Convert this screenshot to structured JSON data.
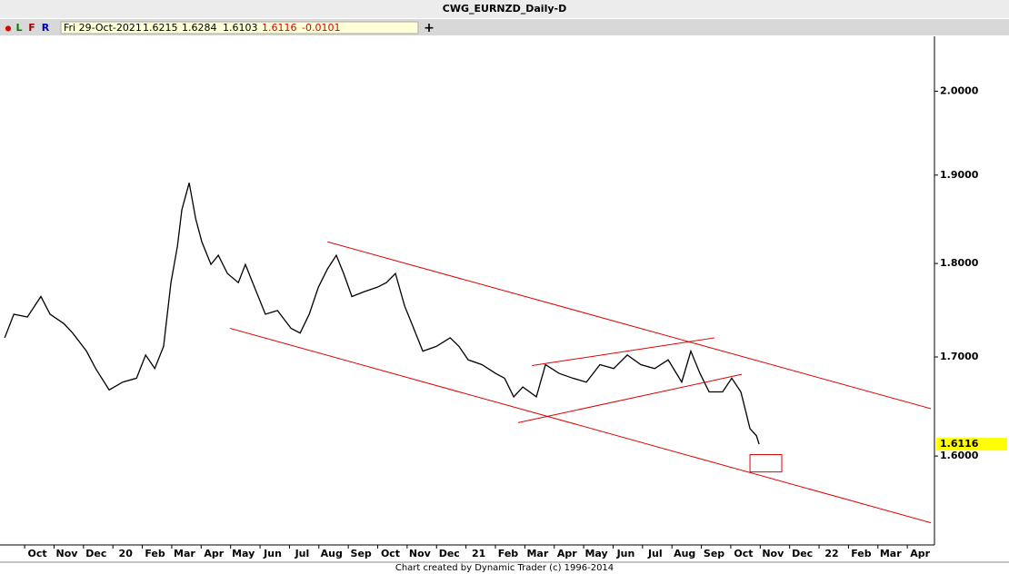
{
  "header": {
    "title": "CWG_EURNZD_Daily-D",
    "buttons": [
      "●",
      "L",
      "F",
      "R"
    ],
    "quote": {
      "date": "Fri 29-Oct-2021",
      "open": "1.6215",
      "high": "1.6284",
      "low": "1.6103",
      "close": "1.6116",
      "change": "-0.0101"
    },
    "add": "+"
  },
  "footer": "Chart created by Dynamic Trader  (c) 1996-2014",
  "chart_data": {
    "type": "line",
    "log_scale": true,
    "color": "#000000",
    "annotation_color": "#e00000",
    "x": [
      -1.11,
      -0.8,
      -0.34,
      0.12,
      0.43,
      0.9,
      1.2,
      1.67,
      1.98,
      2.44,
      2.9,
      3.37,
      3.68,
      3.99,
      4.29,
      4.54,
      4.76,
      4.91,
      5.16,
      5.38,
      5.59,
      5.9,
      6.15,
      6.46,
      6.83,
      7.07,
      7.38,
      7.75,
      8.16,
      8.62,
      8.93,
      9.24,
      9.55,
      9.86,
      10.16,
      10.41,
      10.69,
      11.09,
      11.55,
      11.86,
      12.17,
      12.48,
      12.79,
      13.1,
      13.56,
      14.03,
      14.33,
      14.64,
      15.11,
      15.57,
      15.88,
      16.19,
      16.5,
      16.96,
      17.27,
      17.73,
      18.2,
      18.66,
      19.12,
      19.59,
      20.05,
      20.51,
      20.98,
      21.44,
      21.9,
      22.21,
      22.52,
      22.83,
      23.29,
      23.6,
      23.91,
      24.07,
      24.22,
      24.44,
      24.53
    ],
    "values": [
      1.72,
      1.745,
      1.742,
      1.764,
      1.745,
      1.735,
      1.725,
      1.706,
      1.688,
      1.666,
      1.674,
      1.678,
      1.702,
      1.688,
      1.711,
      1.779,
      1.819,
      1.86,
      1.891,
      1.85,
      1.824,
      1.799,
      1.809,
      1.789,
      1.779,
      1.799,
      1.774,
      1.745,
      1.749,
      1.73,
      1.725,
      1.745,
      1.774,
      1.794,
      1.809,
      1.789,
      1.764,
      1.769,
      1.774,
      1.779,
      1.789,
      1.754,
      1.73,
      1.706,
      1.711,
      1.72,
      1.711,
      1.697,
      1.692,
      1.683,
      1.678,
      1.659,
      1.669,
      1.659,
      1.692,
      1.683,
      1.678,
      1.674,
      1.692,
      1.688,
      1.702,
      1.692,
      1.688,
      1.697,
      1.674,
      1.706,
      1.683,
      1.664,
      1.664,
      1.678,
      1.664,
      1.645,
      1.627,
      1.62,
      1.6116
    ],
    "xlim": [
      -1.27,
      30.49
    ],
    "ylim": [
      1.517,
      2.066
    ],
    "xticks": [
      {
        "value": 0,
        "label": "Oct"
      },
      {
        "value": 1,
        "label": "Nov"
      },
      {
        "value": 2,
        "label": "Dec"
      },
      {
        "value": 3,
        "label": "20"
      },
      {
        "value": 4,
        "label": "Feb"
      },
      {
        "value": 5,
        "label": "Mar"
      },
      {
        "value": 6,
        "label": "Apr"
      },
      {
        "value": 7,
        "label": "May"
      },
      {
        "value": 8,
        "label": "Jun"
      },
      {
        "value": 9,
        "label": "Jul"
      },
      {
        "value": 10,
        "label": "Aug"
      },
      {
        "value": 11,
        "label": "Sep"
      },
      {
        "value": 12,
        "label": "Oct"
      },
      {
        "value": 13,
        "label": "Nov"
      },
      {
        "value": 14,
        "label": "Dec"
      },
      {
        "value": 15,
        "label": "21"
      },
      {
        "value": 16,
        "label": "Feb"
      },
      {
        "value": 17,
        "label": "Mar"
      },
      {
        "value": 18,
        "label": "Apr"
      },
      {
        "value": 19,
        "label": "May"
      },
      {
        "value": 20,
        "label": "Jun"
      },
      {
        "value": 21,
        "label": "Jul"
      },
      {
        "value": 22,
        "label": "Aug"
      },
      {
        "value": 23,
        "label": "Sep"
      },
      {
        "value": 24,
        "label": "Oct"
      },
      {
        "value": 25,
        "label": "Nov"
      },
      {
        "value": 26,
        "label": "Dec"
      },
      {
        "value": 27,
        "label": "22"
      },
      {
        "value": 28,
        "label": "Feb"
      },
      {
        "value": 29,
        "label": "Mar"
      },
      {
        "value": 30,
        "label": "Apr"
      }
    ],
    "yticks": [
      {
        "value": 1.6,
        "label": "1.6000"
      },
      {
        "value": 1.7,
        "label": "1.7000"
      },
      {
        "value": 1.8,
        "label": "1.8000"
      },
      {
        "value": 1.9,
        "label": "1.9000"
      },
      {
        "value": 2.0,
        "label": "2.0000"
      }
    ],
    "last_price": {
      "value": 1.6116,
      "label": "1.6116",
      "color": "#ffff00"
    },
    "trend_lines": [
      {
        "x": [
          9.86,
          30.37
        ],
        "y": [
          1.824,
          1.647
        ]
      },
      {
        "x": [
          6.55,
          30.37
        ],
        "y": [
          1.73,
          1.536
        ]
      },
      {
        "x": [
          16.81,
          23.02
        ],
        "y": [
          1.691,
          1.72
        ]
      },
      {
        "x": [
          16.34,
          23.94
        ],
        "y": [
          1.633,
          1.682
        ]
      }
    ],
    "box": {
      "x": [
        24.22,
        25.3
      ],
      "y": [
        1.6014,
        1.5845
      ]
    }
  }
}
